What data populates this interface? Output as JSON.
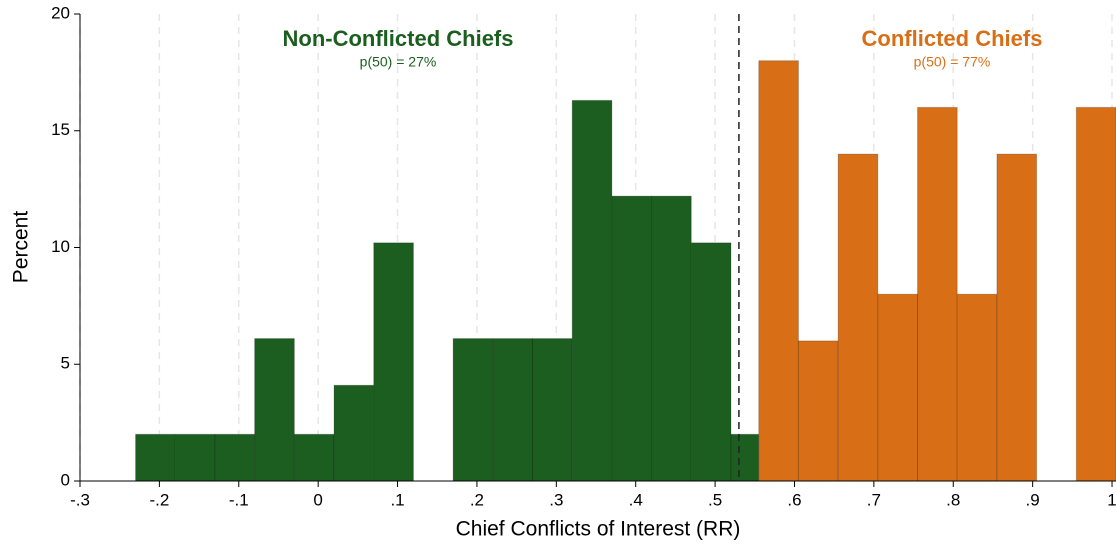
{
  "chart_data": {
    "type": "histogram",
    "x_label": "Chief Conflicts of Interest (RR)",
    "y_label": "Percent",
    "xlim": [
      -0.3,
      1.005
    ],
    "ylim": [
      0,
      20
    ],
    "xticks": [
      {
        "value": -0.3,
        "label": "-.3"
      },
      {
        "value": -0.2,
        "label": "-.2"
      },
      {
        "value": -0.1,
        "label": "-.1"
      },
      0,
      {
        "value": 0.1,
        "label": ".1"
      },
      {
        "value": 0.2,
        "label": ".2"
      },
      {
        "value": 0.3,
        "label": ".3"
      },
      {
        "value": 0.4,
        "label": ".4"
      },
      {
        "value": 0.5,
        "label": ".5"
      },
      {
        "value": 0.6,
        "label": ".6"
      },
      {
        "value": 0.7,
        "label": ".7"
      },
      {
        "value": 0.8,
        "label": ".8"
      },
      {
        "value": 0.9,
        "label": ".9"
      },
      1
    ],
    "yticks": [
      0,
      5,
      10,
      15,
      20
    ],
    "grid": true,
    "vline": 0.53,
    "series": [
      {
        "name": "Non-Conflicted Chiefs",
        "note": "p(50) = 27%",
        "color": "#1c5e1f",
        "bins": [
          -0.23,
          -0.18,
          -0.13,
          -0.08,
          -0.03,
          0.02,
          0.07,
          0.12,
          0.17,
          0.22,
          0.27,
          0.32,
          0.37,
          0.42,
          0.47,
          0.52,
          0.555
        ],
        "values": [
          2,
          2,
          2,
          6.1,
          2,
          4.1,
          10.2,
          0,
          6.1,
          6.1,
          6.1,
          16.3,
          12.2,
          12.2,
          10.2,
          2
        ]
      },
      {
        "name": "Conflicted Chiefs",
        "note": "p(50) = 77%",
        "color": "#d86f17",
        "bins": [
          0.555,
          0.605,
          0.655,
          0.705,
          0.755,
          0.805,
          0.855,
          0.905,
          0.955,
          1.005
        ],
        "values": [
          18,
          6,
          14,
          8,
          16,
          8,
          14,
          0,
          16
        ]
      }
    ]
  }
}
